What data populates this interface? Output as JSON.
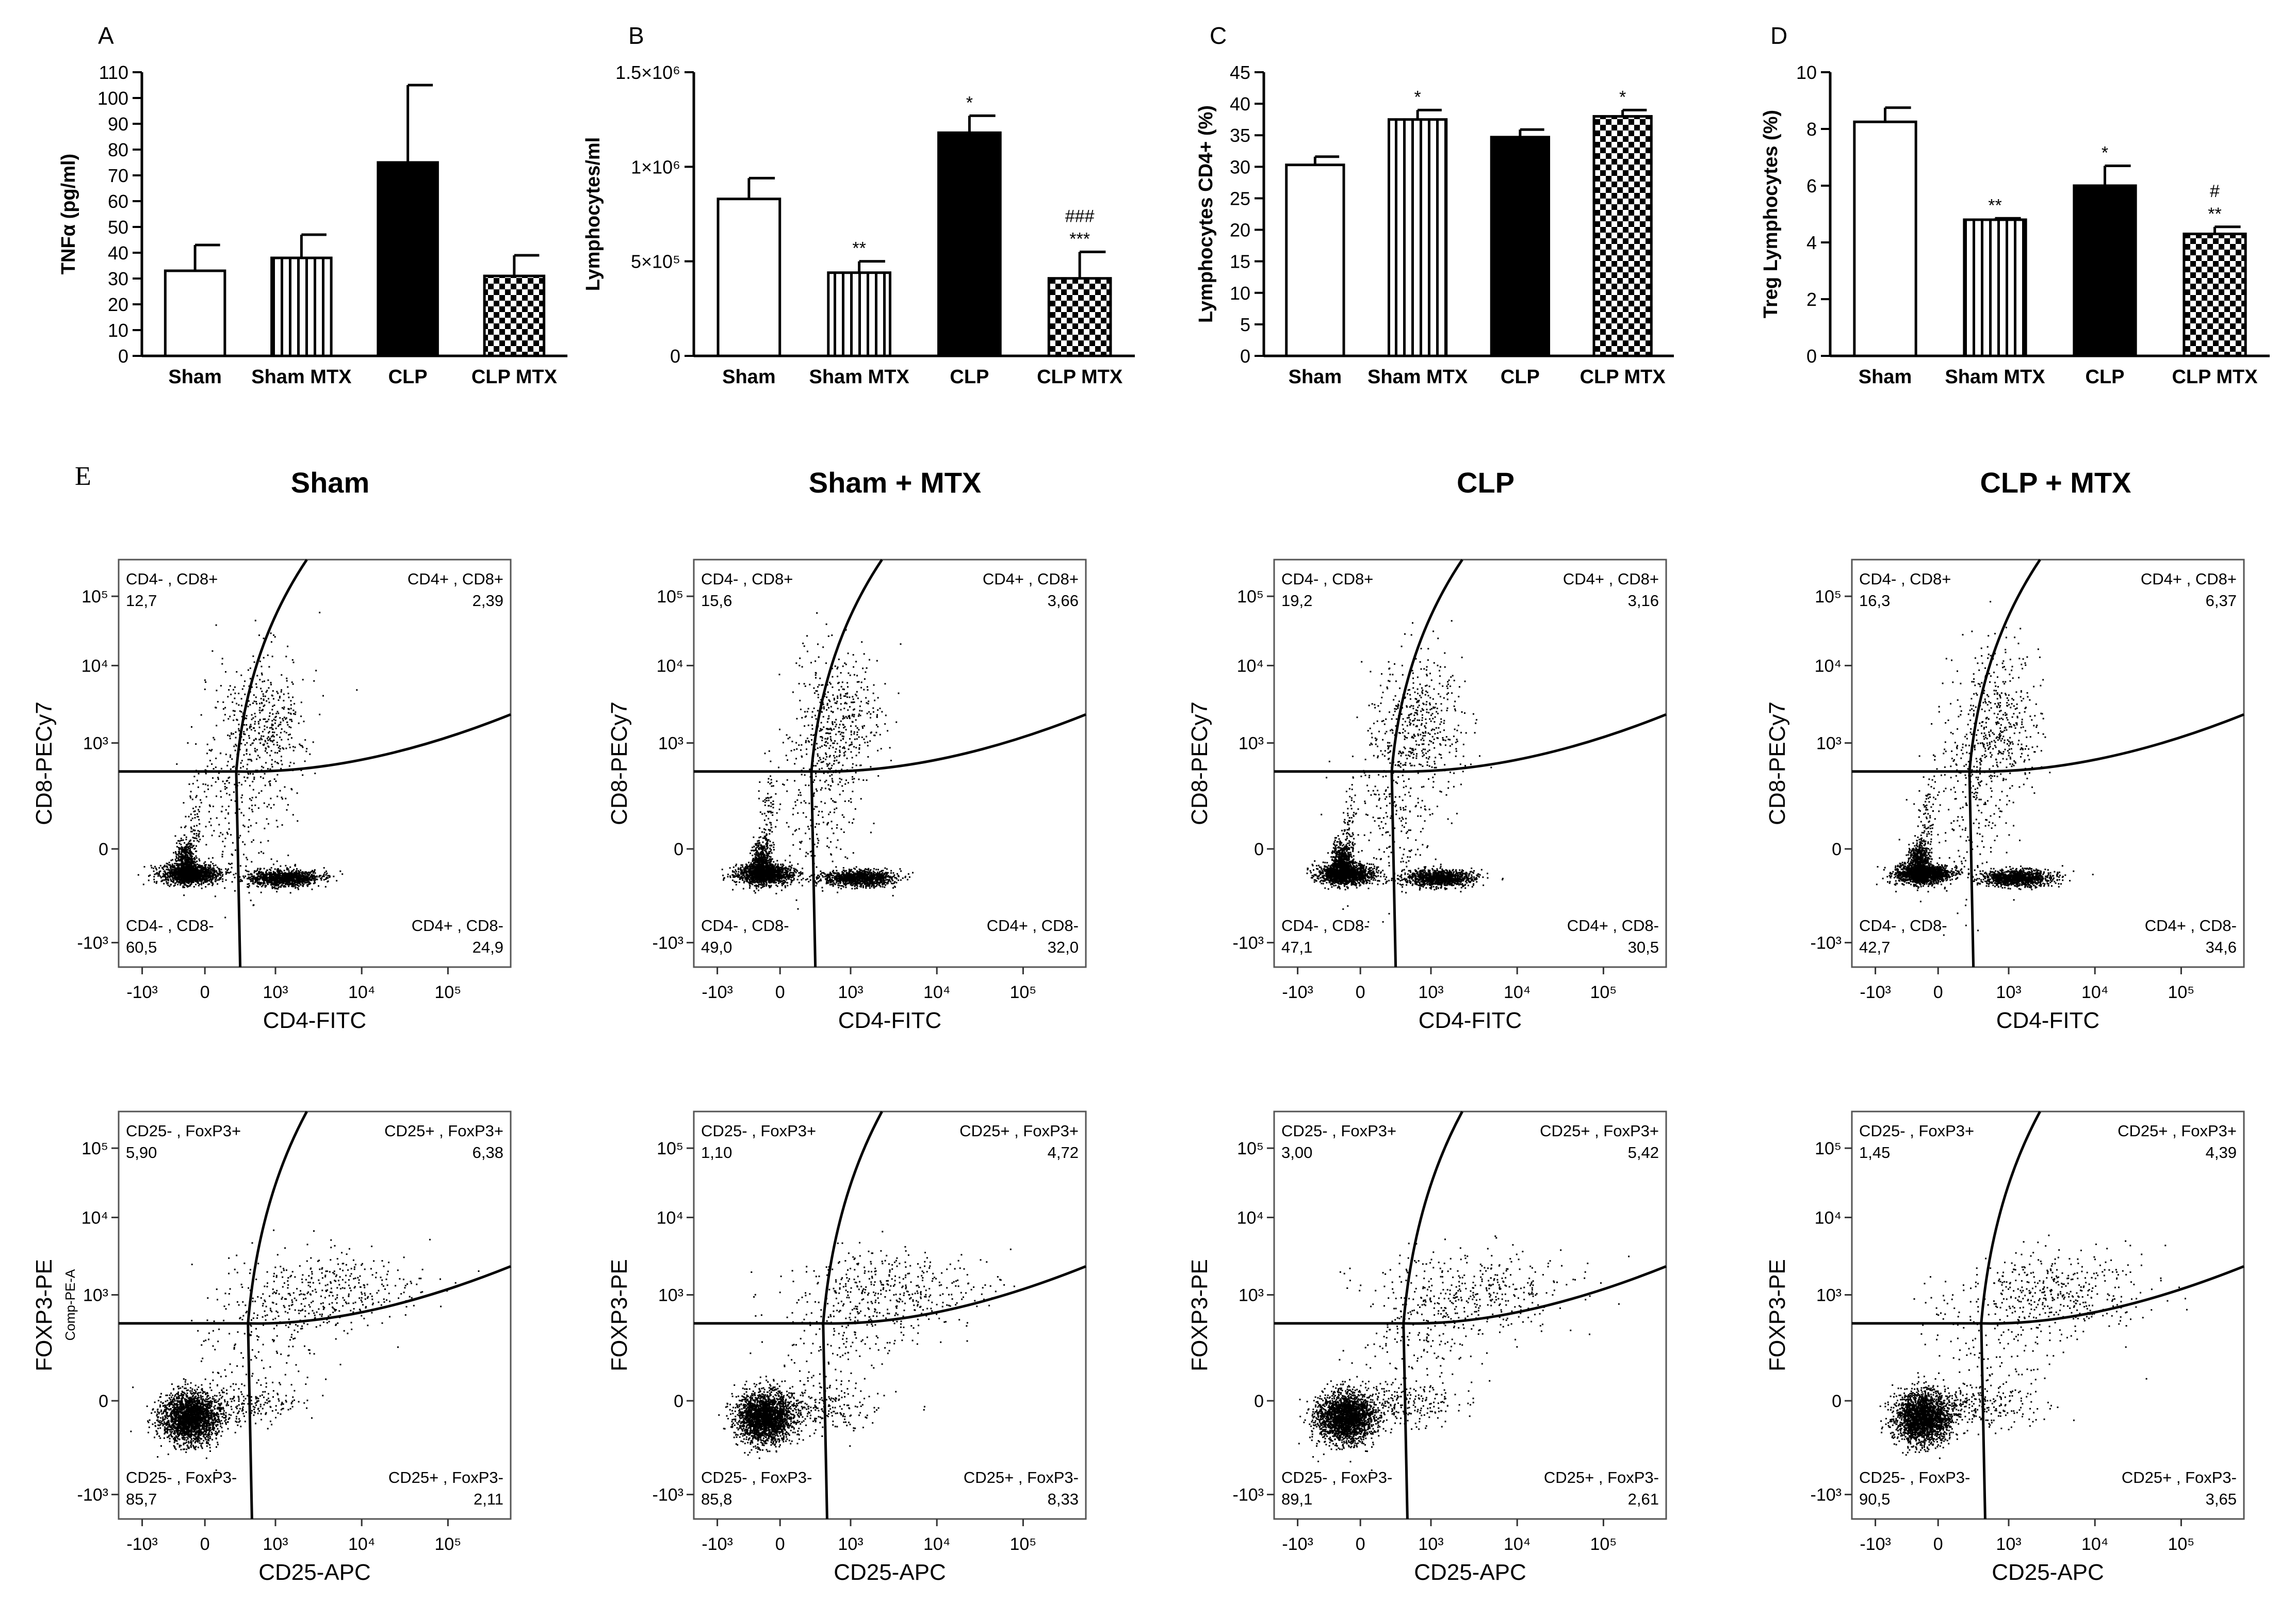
{
  "panel_letters": [
    "A",
    "B",
    "C",
    "D",
    "E"
  ],
  "chart_data": [
    {
      "type": "bar",
      "panel": "A",
      "categories": [
        "Sham",
        "Sham MTX",
        "CLP",
        "CLP MTX"
      ],
      "values": [
        33,
        38,
        75,
        31
      ],
      "errors": [
        10,
        9,
        30,
        8
      ],
      "patterns": [
        "white",
        "vertical",
        "black",
        "checker"
      ],
      "sig": [
        "",
        "",
        "",
        ""
      ],
      "ylabel": "TNFα  (pg/ml)",
      "ylim": [
        0,
        110
      ],
      "ytick_values": [
        0,
        10,
        20,
        30,
        40,
        50,
        60,
        70,
        80,
        90,
        100,
        110
      ],
      "ytick_labels": [
        "0",
        "10",
        "20",
        "30",
        "40",
        "50",
        "60",
        "70",
        "80",
        "90",
        "100",
        "110"
      ]
    },
    {
      "type": "bar",
      "panel": "B",
      "categories": [
        "Sham",
        "Sham MTX",
        "CLP",
        "CLP MTX"
      ],
      "values": [
        830000,
        440000,
        1180000,
        410000
      ],
      "errors": [
        110000,
        60000,
        90000,
        140000
      ],
      "patterns": [
        "white",
        "vertical",
        "black",
        "checker"
      ],
      "sig": [
        "",
        "**",
        "*",
        "***"
      ],
      "sig2": [
        "",
        "",
        "",
        "###"
      ],
      "ylabel": "Lymphocytes/ml",
      "ylim": [
        0,
        1500000
      ],
      "ytick_values": [
        0,
        500000,
        1000000,
        1500000
      ],
      "ytick_labels": [
        "0",
        "5×10⁵",
        "1×10⁶",
        "1.5×10⁶"
      ]
    },
    {
      "type": "bar",
      "panel": "C",
      "categories": [
        "Sham",
        "Sham MTX",
        "CLP",
        "CLP MTX"
      ],
      "values": [
        30.3,
        37.5,
        34.7,
        38.0
      ],
      "errors": [
        1.3,
        1.5,
        1.2,
        1.0
      ],
      "patterns": [
        "white",
        "vertical",
        "black",
        "checker"
      ],
      "sig": [
        "",
        "*",
        "",
        "*"
      ],
      "ylabel": "Lymphocytes  CD4+  (%)",
      "ylim": [
        0,
        45
      ],
      "ytick_values": [
        0,
        5,
        10,
        15,
        20,
        25,
        30,
        35,
        40,
        45
      ],
      "ytick_labels": [
        "0",
        "5",
        "10",
        "15",
        "20",
        "25",
        "30",
        "35",
        "40",
        "45"
      ]
    },
    {
      "type": "bar",
      "panel": "D",
      "categories": [
        "Sham",
        "Sham MTX",
        "CLP",
        "CLP MTX"
      ],
      "values": [
        8.25,
        4.8,
        6.0,
        4.3
      ],
      "errors": [
        0.5,
        0.05,
        0.7,
        0.25
      ],
      "patterns": [
        "white",
        "vertical",
        "black",
        "checker"
      ],
      "sig": [
        "",
        "**",
        "*",
        "**"
      ],
      "sig2": [
        "",
        "",
        "",
        "#"
      ],
      "ylabel": "Treg Lymphocytes (%)",
      "ylim": [
        0,
        10
      ],
      "ytick_values": [
        0,
        2,
        4,
        6,
        8,
        10
      ],
      "ytick_labels": [
        "0",
        "2",
        "4",
        "6",
        "8",
        "10"
      ]
    }
  ],
  "flow": {
    "group_titles": [
      "Sham",
      "Sham + MTX",
      "CLP",
      "CLP + MTX"
    ],
    "rows": [
      {
        "xlabel": "CD4-FITC",
        "ylabel": "CD8-PECy7",
        "q_labels": [
          "CD4- , CD8+",
          "CD4+ , CD8+",
          "CD4- , CD8-",
          "CD4+ , CD8-"
        ],
        "plots": [
          {
            "q": [
              "12,7",
              "2,39",
              "60,5",
              "24,9"
            ]
          },
          {
            "q": [
              "15,6",
              "3,66",
              "49,0",
              "32,0"
            ]
          },
          {
            "q": [
              "19,2",
              "3,16",
              "47,1",
              "30,5"
            ]
          },
          {
            "q": [
              "16,3",
              "6,37",
              "42,7",
              "34,6"
            ]
          }
        ]
      },
      {
        "xlabel": "CD25-APC",
        "ylabel": "FOXP3-PE",
        "extra_ylabel": "Comp-PE-A",
        "q_labels": [
          "CD25- , FoxP3+",
          "CD25+ , FoxP3+",
          "CD25- , FoxP3-",
          "CD25+ , FoxP3-"
        ],
        "plots": [
          {
            "q": [
              "5,90",
              "6,38",
              "85,7",
              "2,11"
            ]
          },
          {
            "q": [
              "1,10",
              "4,72",
              "85,8",
              "8,33"
            ]
          },
          {
            "q": [
              "3,00",
              "5,42",
              "89,1",
              "2,61"
            ]
          },
          {
            "q": [
              "1,45",
              "4,39",
              "90,5",
              "3,65"
            ]
          }
        ]
      }
    ],
    "tick_labels": [
      "-10³",
      "0",
      "10³",
      "10⁴",
      "10⁵"
    ]
  }
}
